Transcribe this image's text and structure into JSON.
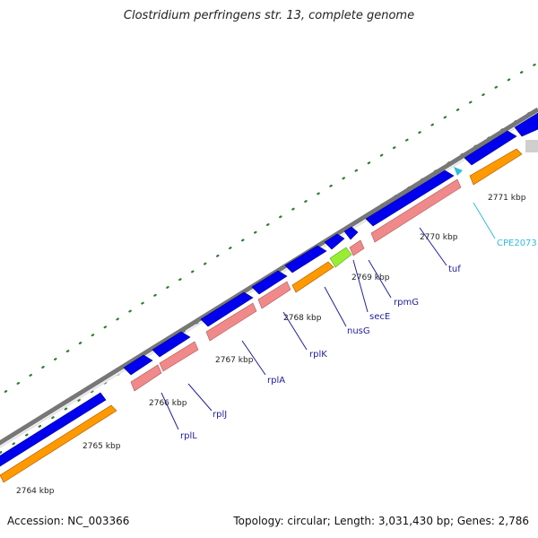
{
  "title": "Clostridium perfringens str. 13, complete genome",
  "accession": "Accession: NC_003366",
  "summary": "Topology: circular; Length: 3,031,430 bp; Genes: 2,786",
  "ticks": [
    "2764 kbp",
    "2765 kbp",
    "2766 kbp",
    "2767 kbp",
    "2768 kbp",
    "2769 kbp",
    "2770 kbp",
    "2771 kbp"
  ],
  "genes": [
    {
      "name": "rplL",
      "color": "#2020a0"
    },
    {
      "name": "rplJ",
      "color": "#2020a0"
    },
    {
      "name": "rplA",
      "color": "#2020a0"
    },
    {
      "name": "rplK",
      "color": "#2020a0"
    },
    {
      "name": "nusG",
      "color": "#2020a0"
    },
    {
      "name": "secE",
      "color": "#2020a0"
    },
    {
      "name": "rpmG",
      "color": "#2020a0"
    },
    {
      "name": "tuf",
      "color": "#2020a0"
    },
    {
      "name": "CPE2073",
      "color": "#33bbdd"
    }
  ],
  "legend_colors": {
    "cds_forward": "#0000ee",
    "gene_forward": "#f08a8a",
    "cds_reverse": "#ff9900",
    "rna": "#99ee33",
    "backbone": "#888888",
    "tick": "#2e7d32"
  }
}
